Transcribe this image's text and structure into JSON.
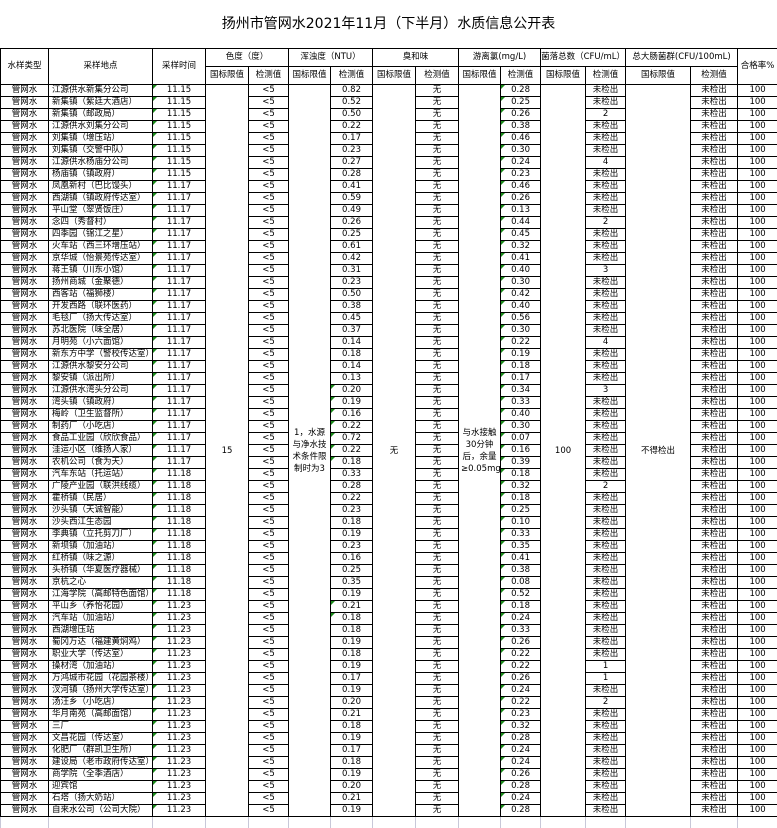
{
  "title": "扬州市管网水2021年11月（下半月）水质信息公开表",
  "headers": {
    "type": "水样类型",
    "location": "采样地点",
    "time": "采样时间",
    "color": "色度（度）",
    "turbidity": "浑浊度（NTU）",
    "odor": "臭和味",
    "chlorine": "游离氯(mg/L)",
    "colony": "菌落总数（CFU/mL）",
    "coliform": "总大肠菌群(CFU/100mL)",
    "rate": "合格率%",
    "standard": "国标限值",
    "measured": "检测值"
  },
  "standards": {
    "color": "15",
    "turbidity": "1，水源与净水技术条件限制时为3",
    "odor": "无",
    "chlorine": "与水接触30分钟后，余量≥0.05mg/L",
    "colony": "100",
    "coliform": "不得检出"
  },
  "row_fields": [
    "type",
    "location",
    "time",
    "color",
    "turbidity",
    "odor",
    "chlorine",
    "colony",
    "coliform",
    "rate"
  ],
  "rows": [
    [
      "管网水",
      "江源供水新集分公司",
      "11.15",
      "<5",
      "0.82",
      "无",
      "0.28",
      "未检出",
      "未检出",
      "100"
    ],
    [
      "管网水",
      "新集镇（紫廷大酒店）",
      "11.15",
      "<5",
      "0.52",
      "无",
      "0.25",
      "未检出",
      "未检出",
      "100"
    ],
    [
      "管网水",
      "新集镇（邮政局）",
      "11.15",
      "<5",
      "0.50",
      "无",
      "0.26",
      "2",
      "未检出",
      "100"
    ],
    [
      "管网水",
      "江源供水刘集分公司",
      "11.15",
      "<5",
      "0.22",
      "无",
      "0.38",
      "未检出",
      "未检出",
      "100"
    ],
    [
      "管网水",
      "刘集镇（增压站）",
      "11.15",
      "<5",
      "0.17",
      "无",
      "0.46",
      "未检出",
      "未检出",
      "100"
    ],
    [
      "管网水",
      "刘集镇（交警中队）",
      "11.15",
      "<5",
      "0.23",
      "无",
      "0.30",
      "未检出",
      "未检出",
      "100"
    ],
    [
      "管网水",
      "江源供水杨庙分公司",
      "11.15",
      "<5",
      "0.27",
      "无",
      "0.24",
      "4",
      "未检出",
      "100"
    ],
    [
      "管网水",
      "杨庙镇（镇政府）",
      "11.15",
      "<5",
      "0.28",
      "无",
      "0.23",
      "未检出",
      "未检出",
      "100"
    ],
    [
      "管网水",
      "凤凰新村（巴比馒头）",
      "11.17",
      "<5",
      "0.41",
      "无",
      "0.46",
      "未检出",
      "未检出",
      "100"
    ],
    [
      "管网水",
      "西湖镇（镇政府传达室）",
      "11.17",
      "<5",
      "0.59",
      "无",
      "0.26",
      "未检出",
      "未检出",
      "100"
    ],
    [
      "管网水",
      "平山堂（翠贤饭庄）",
      "11.17",
      "<5",
      "0.49",
      "无",
      "0.13",
      "未检出",
      "未检出",
      "100"
    ],
    [
      "管网水",
      "念四（秀督村）",
      "11.17",
      "<5",
      "0.26",
      "无",
      "0.44",
      "2",
      "未检出",
      "100"
    ],
    [
      "管网水",
      "四季园（锦江之星）",
      "11.17",
      "<5",
      "0.25",
      "无",
      "0.45",
      "未检出",
      "未检出",
      "100"
    ],
    [
      "管网水",
      "火车站（西三环增压站）",
      "11.17",
      "<5",
      "0.61",
      "无",
      "0.32",
      "未检出",
      "未检出",
      "100"
    ],
    [
      "管网水",
      "京华城（怡景苑传达室）",
      "11.17",
      "<5",
      "0.42",
      "无",
      "0.41",
      "未检出",
      "未检出",
      "100"
    ],
    [
      "管网水",
      "蒋王镇（川东小馆）",
      "11.17",
      "<5",
      "0.31",
      "无",
      "0.40",
      "3",
      "未检出",
      "100"
    ],
    [
      "管网水",
      "扬州商城（金聚德）",
      "11.17",
      "<5",
      "0.23",
      "无",
      "0.30",
      "未检出",
      "未检出",
      "100"
    ],
    [
      "管网水",
      "西客站（福狮楼）",
      "11.17",
      "<5",
      "0.50",
      "无",
      "0.42",
      "未检出",
      "未检出",
      "100"
    ],
    [
      "管网水",
      "开发西路（联环医药）",
      "11.17",
      "<5",
      "0.38",
      "无",
      "0.40",
      "未检出",
      "未检出",
      "100"
    ],
    [
      "管网水",
      "毛毯厂（扬大传达室）",
      "11.17",
      "<5",
      "0.45",
      "无",
      "0.56",
      "未检出",
      "未检出",
      "100"
    ],
    [
      "管网水",
      "苏北医院（味全居）",
      "11.17",
      "<5",
      "0.37",
      "无",
      "0.30",
      "未检出",
      "未检出",
      "100"
    ],
    [
      "管网水",
      "月明苑（小六面馆）",
      "11.17",
      "<5",
      "0.14",
      "无",
      "0.22",
      "4",
      "未检出",
      "100"
    ],
    [
      "管网水",
      "新东方中学（警校传达室）",
      "11.17",
      "<5",
      "0.18",
      "无",
      "0.19",
      "未检出",
      "未检出",
      "100"
    ],
    [
      "管网水",
      "江源供水黎安分公司",
      "11.17",
      "<5",
      "0.14",
      "无",
      "0.18",
      "未检出",
      "未检出",
      "100"
    ],
    [
      "管网水",
      "黎安镇（派出所）",
      "11.17",
      "<5",
      "0.13",
      "无",
      "0.17",
      "未检出",
      "未检出",
      "100"
    ],
    [
      "管网水",
      "江源供水湾头分公司",
      "11.17",
      "<5",
      "0.20",
      "无",
      "0.34",
      "3",
      "未检出",
      "100"
    ],
    [
      "管网水",
      "湾头镇（镇政府）",
      "11.17",
      "<5",
      "0.19",
      "无",
      "0.33",
      "未检出",
      "未检出",
      "100"
    ],
    [
      "管网水",
      "梅岭（卫生监督所）",
      "11.17",
      "<5",
      "0.16",
      "无",
      "0.40",
      "未检出",
      "未检出",
      "100"
    ],
    [
      "管网水",
      "制药厂（小吃店）",
      "11.17",
      "<5",
      "0.22",
      "无",
      "0.30",
      "未检出",
      "未检出",
      "100"
    ],
    [
      "管网水",
      "食品工业园（欣欣食品）",
      "11.17",
      "<5",
      "0.72",
      "无",
      "0.07",
      "未检出",
      "未检出",
      "100"
    ],
    [
      "管网水",
      "洼运小区（维扬人家）",
      "11.17",
      "<5",
      "0.22",
      "无",
      "0.16",
      "未检出",
      "未检出",
      "100"
    ],
    [
      "管网水",
      "农机公司（食为天）",
      "11.17",
      "<5",
      "0.18",
      "无",
      "0.39",
      "未检出",
      "未检出",
      "100"
    ],
    [
      "管网水",
      "汽车东站（托运站）",
      "11.18",
      "<5",
      "0.33",
      "无",
      "0.18",
      "未检出",
      "未检出",
      "100"
    ],
    [
      "管网水",
      "广陵产业园（联洪线缆）",
      "11.18",
      "<5",
      "0.28",
      "无",
      "0.32",
      "2",
      "未检出",
      "100"
    ],
    [
      "管网水",
      "霍桥镇（民居）",
      "11.18",
      "<5",
      "0.22",
      "无",
      "0.18",
      "未检出",
      "未检出",
      "100"
    ],
    [
      "管网水",
      "沙头镇（天诚智能）",
      "11.18",
      "<5",
      "0.23",
      "无",
      "0.25",
      "未检出",
      "未检出",
      "100"
    ],
    [
      "管网水",
      "沙头西江生态园",
      "11.18",
      "<5",
      "0.18",
      "无",
      "0.10",
      "未检出",
      "未检出",
      "100"
    ],
    [
      "管网水",
      "李典镇（立托剪刀厂）",
      "11.18",
      "<5",
      "0.19",
      "无",
      "0.33",
      "未检出",
      "未检出",
      "100"
    ],
    [
      "管网水",
      "新坝镇（加油站）",
      "11.18",
      "<5",
      "0.23",
      "无",
      "0.35",
      "未检出",
      "未检出",
      "100"
    ],
    [
      "管网水",
      "红桥镇（味之源）",
      "11.18",
      "<5",
      "0.16",
      "无",
      "0.41",
      "未检出",
      "未检出",
      "100"
    ],
    [
      "管网水",
      "头桥镇（华夏医疗器械）",
      "11.18",
      "<5",
      "0.25",
      "无",
      "0.38",
      "未检出",
      "未检出",
      "100"
    ],
    [
      "管网水",
      "京杭之心",
      "11.18",
      "<5",
      "0.35",
      "无",
      "0.08",
      "未检出",
      "未检出",
      "100"
    ],
    [
      "管网水",
      "江海学院（高邮特色面馆）",
      "11.18",
      "<5",
      "0.19",
      "无",
      "0.52",
      "未检出",
      "未检出",
      "100"
    ],
    [
      "管网水",
      "平山乡（养怡花园）",
      "11.23",
      "<5",
      "0.21",
      "无",
      "0.18",
      "未检出",
      "未检出",
      "100"
    ],
    [
      "管网水",
      "汽车站（加油站）",
      "11.23",
      "<5",
      "0.18",
      "无",
      "0.24",
      "未检出",
      "未检出",
      "100"
    ],
    [
      "管网水",
      "西湖增压站",
      "11.23",
      "<5",
      "0.18",
      "无",
      "0.33",
      "未检出",
      "未检出",
      "100"
    ],
    [
      "管网水",
      "蜀冈万达（福建黄焖鸡）",
      "11.23",
      "<5",
      "0.19",
      "无",
      "0.26",
      "未检出",
      "未检出",
      "100"
    ],
    [
      "管网水",
      "职业大学（传达室）",
      "11.23",
      "<5",
      "0.18",
      "无",
      "0.22",
      "未检出",
      "未检出",
      "100"
    ],
    [
      "管网水",
      "操材湾（加油站）",
      "11.23",
      "<5",
      "0.19",
      "无",
      "0.22",
      "1",
      "未检出",
      "100"
    ],
    [
      "管网水",
      "万鸿城市花园（花园茶楼）",
      "11.23",
      "<5",
      "0.17",
      "无",
      "0.26",
      "1",
      "未检出",
      "100"
    ],
    [
      "管网水",
      "汊河镇（扬州大学传达室）",
      "11.23",
      "<5",
      "0.19",
      "无",
      "0.24",
      "未检出",
      "未检出",
      "100"
    ],
    [
      "管网水",
      "汤汪乡（小吃店）",
      "11.23",
      "<5",
      "0.20",
      "无",
      "0.22",
      "2",
      "未检出",
      "100"
    ],
    [
      "管网水",
      "华月南苑（高邮面馆）",
      "11.23",
      "<5",
      "0.21",
      "无",
      "0.23",
      "未检出",
      "未检出",
      "100"
    ],
    [
      "管网水",
      "三厂",
      "11.23",
      "<5",
      "0.18",
      "无",
      "0.32",
      "未检出",
      "未检出",
      "100"
    ],
    [
      "管网水",
      "文昌花园（传达室）",
      "11.23",
      "<5",
      "0.19",
      "无",
      "0.28",
      "未检出",
      "未检出",
      "100"
    ],
    [
      "管网水",
      "化肥厂（群凯卫生所）",
      "11.23",
      "<5",
      "0.17",
      "无",
      "0.24",
      "未检出",
      "未检出",
      "100"
    ],
    [
      "管网水",
      "建设局（老市政府传达室）",
      "11.23",
      "<5",
      "0.18",
      "无",
      "0.24",
      "未检出",
      "未检出",
      "100"
    ],
    [
      "管网水",
      "商学院（全季酒店）",
      "11.23",
      "<5",
      "0.19",
      "无",
      "0.26",
      "未检出",
      "未检出",
      "100"
    ],
    [
      "管网水",
      "迎宾馆",
      "11.23",
      "<5",
      "0.20",
      "无",
      "0.28",
      "未检出",
      "未检出",
      "100"
    ],
    [
      "管网水",
      "石塔（扬大奶站）",
      "11.23",
      "<5",
      "0.21",
      "无",
      "0.24",
      "未检出",
      "未检出",
      "100"
    ],
    [
      "管网水",
      "自来水公司（公司大院）",
      "11.23",
      "<5",
      "0.19",
      "无",
      "0.28",
      "未检出",
      "未检出",
      "100"
    ]
  ],
  "colors": {
    "border": "#000000",
    "comment_marker": "#1a8a1a"
  }
}
